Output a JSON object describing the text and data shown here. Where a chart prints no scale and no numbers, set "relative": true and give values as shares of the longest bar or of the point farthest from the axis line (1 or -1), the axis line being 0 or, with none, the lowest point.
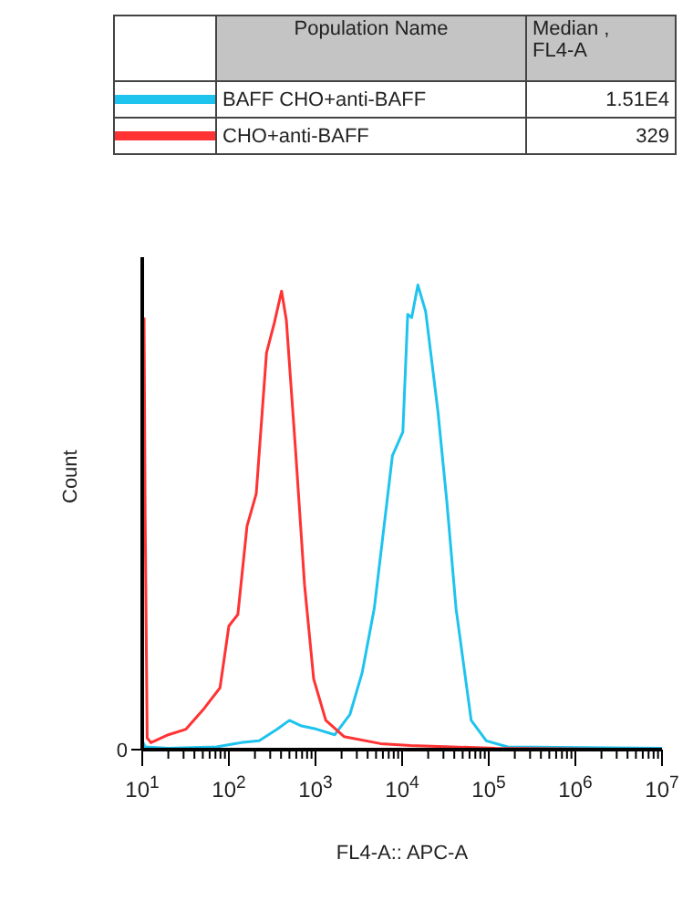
{
  "chart_data": {
    "type": "line",
    "relative": true,
    "xlabel": "FL4-A:: APC-A",
    "ylabel": "Count",
    "log": "x",
    "legend": "top",
    "line_style": "solid",
    "annotations": [
      "Population Name",
      "Median , FL4-A",
      "1.51E4",
      "329",
      "0"
    ],
    "xlim": [
      10,
      10000000
    ],
    "xticks": [
      {
        "value": 10,
        "label": "10$^{1}$"
      },
      {
        "value": 20,
        "label": null
      },
      {
        "value": 30,
        "label": null
      },
      {
        "value": 40,
        "label": null
      },
      {
        "value": 50,
        "label": null
      },
      {
        "value": 60,
        "label": null
      },
      {
        "value": 70,
        "label": null
      },
      {
        "value": 80,
        "label": null
      },
      {
        "value": 90,
        "label": null
      },
      {
        "value": 100,
        "label": "10$^{2}$"
      },
      {
        "value": 200,
        "label": null
      },
      {
        "value": 300,
        "label": null
      },
      {
        "value": 400,
        "label": null
      },
      {
        "value": 500,
        "label": null
      },
      {
        "value": 600,
        "label": null
      },
      {
        "value": 700,
        "label": null
      },
      {
        "value": 800,
        "label": null
      },
      {
        "value": 900,
        "label": null
      },
      {
        "value": 1000,
        "label": "10$^{3}$"
      },
      {
        "value": 2000,
        "label": null
      },
      {
        "value": 3000,
        "label": null
      },
      {
        "value": 4000,
        "label": null
      },
      {
        "value": 5000,
        "label": null
      },
      {
        "value": 6000,
        "label": null
      },
      {
        "value": 7000,
        "label": null
      },
      {
        "value": 8000,
        "label": null
      },
      {
        "value": 9000,
        "label": null
      },
      {
        "value": 10000,
        "label": "10$^{4}$"
      },
      {
        "value": 20000,
        "label": null
      },
      {
        "value": 30000,
        "label": null
      },
      {
        "value": 40000,
        "label": null
      },
      {
        "value": 50000,
        "label": null
      },
      {
        "value": 60000,
        "label": null
      },
      {
        "value": 70000,
        "label": null
      },
      {
        "value": 80000,
        "label": null
      },
      {
        "value": 90000,
        "label": null
      },
      {
        "value": 100000,
        "label": "10$^{5}$"
      },
      {
        "value": 200000,
        "label": null
      },
      {
        "value": 300000,
        "label": null
      },
      {
        "value": 400000,
        "label": null
      },
      {
        "value": 500000,
        "label": null
      },
      {
        "value": 600000,
        "label": null
      },
      {
        "value": 700000,
        "label": null
      },
      {
        "value": 800000,
        "label": null
      },
      {
        "value": 900000,
        "label": null
      },
      {
        "value": 1000000,
        "label": "10$^{6}$"
      },
      {
        "value": 2000000,
        "label": null
      },
      {
        "value": 3000000,
        "label": null
      },
      {
        "value": 4000000,
        "label": null
      },
      {
        "value": 5000000,
        "label": null
      },
      {
        "value": 6000000,
        "label": null
      },
      {
        "value": 7000000,
        "label": null
      },
      {
        "value": 8000000,
        "label": null
      },
      {
        "value": 9000000,
        "label": null
      },
      {
        "value": 10000000,
        "label": "10$^{7}$"
      }
    ],
    "series": [
      {
        "name": "BAFF CHO+anti-BAFF",
        "color": "#1ec3ee",
        "x": [
          10,
          10.8,
          20,
          72,
          138,
          224,
          362,
          500,
          690,
          1030,
          1670,
          2500,
          3450,
          4770,
          6070,
          7730,
          10200,
          11600,
          12900,
          15200,
          18700,
          25900,
          32900,
          41900,
          62700,
          93800,
          165000,
          10000000
        ],
        "values": [
          0.019,
          0.006,
          0.003,
          0.006,
          0.015,
          0.019,
          0.044,
          0.063,
          0.051,
          0.044,
          0.032,
          0.076,
          0.165,
          0.304,
          0.468,
          0.633,
          0.684,
          0.937,
          0.93,
          1,
          0.943,
          0.728,
          0.532,
          0.304,
          0.063,
          0.019,
          0.006,
          0.003
        ]
      },
      {
        "name": "CHO+anti-BAFF",
        "color": "#ff3333",
        "x": [
          10.5,
          10.8,
          11.4,
          12.6,
          20,
          32,
          52,
          79,
          100,
          127,
          162,
          207,
          272,
          334,
          406,
          461,
          588,
          748,
          953,
          1315,
          2130,
          5600,
          12500,
          119000,
          10000000
        ],
        "values": [
          0.93,
          0.506,
          0.025,
          0.015,
          0.032,
          0.044,
          0.089,
          0.133,
          0.266,
          0.291,
          0.481,
          0.551,
          0.854,
          0.918,
          0.987,
          0.924,
          0.646,
          0.354,
          0.152,
          0.063,
          0.028,
          0.013,
          0.009,
          0.003,
          0
        ]
      }
    ]
  }
}
